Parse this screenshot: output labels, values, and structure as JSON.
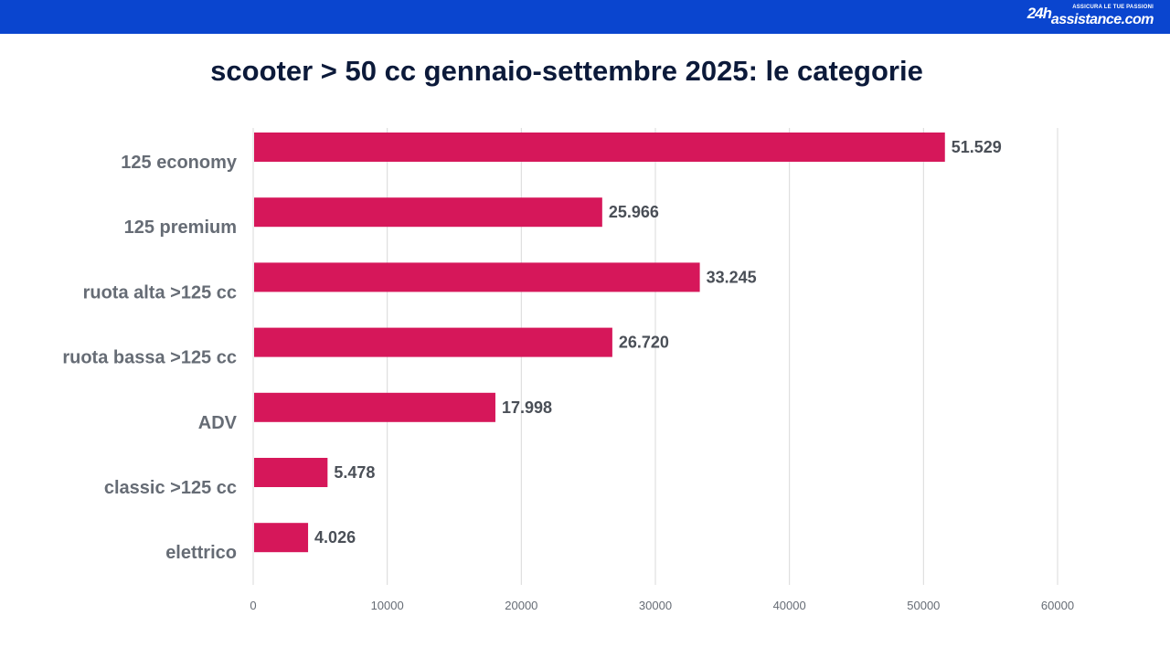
{
  "header": {
    "logo_mark": "24h",
    "logo_tagline": "ASSICURA LE TUE PASSIONI",
    "logo_site": "assistance.com",
    "bar_color": "#0a45cf"
  },
  "chart_data": {
    "type": "bar",
    "orientation": "horizontal",
    "title": "scooter > 50 cc gennaio-settembre 2025: le categorie",
    "categories": [
      "125 economy",
      "125 premium",
      "ruota alta >125 cc",
      "ruota bassa >125 cc",
      "ADV",
      "classic >125 cc",
      "elettrico"
    ],
    "values": [
      51529,
      25966,
      33245,
      26720,
      17998,
      5478,
      4026
    ],
    "value_labels": [
      "51.529",
      "25.966",
      "33.245",
      "26.720",
      "17.998",
      "5.478",
      "4.026"
    ],
    "xlim": [
      0,
      60000
    ],
    "xticks": [
      0,
      10000,
      20000,
      30000,
      40000,
      50000,
      60000
    ],
    "xtick_labels": [
      "0",
      "10000",
      "20000",
      "30000",
      "40000",
      "50000",
      "60000"
    ],
    "grid": true,
    "bar_color": "#d6175a"
  }
}
